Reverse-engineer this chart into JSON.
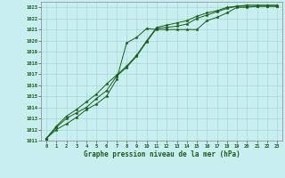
{
  "title": "Graphe pression niveau de la mer (hPa)",
  "bg_color": "#c8eef0",
  "line_color": "#1a5e1a",
  "grid_color": "#a8d8d8",
  "xlim": [
    -0.5,
    23.5
  ],
  "ylim": [
    1011,
    1023.5
  ],
  "xticks": [
    0,
    1,
    2,
    3,
    4,
    5,
    6,
    7,
    8,
    9,
    10,
    11,
    12,
    13,
    14,
    15,
    16,
    17,
    18,
    19,
    20,
    21,
    22,
    23
  ],
  "yticks": [
    1011,
    1012,
    1013,
    1014,
    1015,
    1016,
    1017,
    1018,
    1019,
    1020,
    1021,
    1022,
    1023
  ],
  "series": [
    [
      1011.2,
      1012.0,
      1012.5,
      1013.1,
      1013.8,
      1014.3,
      1015.0,
      1016.5,
      1019.8,
      1020.3,
      1021.1,
      1021.0,
      1021.0,
      1021.0,
      1021.0,
      1021.0,
      1021.8,
      1022.1,
      1022.5,
      1023.0,
      1023.0,
      1023.1,
      1023.1,
      1023.1
    ],
    [
      1011.2,
      1012.2,
      1013.0,
      1013.5,
      1014.0,
      1014.8,
      1015.5,
      1016.8,
      1017.6,
      1018.6,
      1019.9,
      1021.1,
      1021.2,
      1021.3,
      1021.5,
      1022.0,
      1022.3,
      1022.6,
      1022.9,
      1023.1,
      1023.1,
      1023.1,
      1023.1,
      1023.1
    ],
    [
      1011.2,
      1012.3,
      1013.2,
      1013.8,
      1014.5,
      1015.2,
      1016.1,
      1016.9,
      1017.7,
      1018.7,
      1020.0,
      1021.2,
      1021.4,
      1021.6,
      1021.8,
      1022.2,
      1022.5,
      1022.7,
      1023.0,
      1023.1,
      1023.2,
      1023.2,
      1023.2,
      1023.2
    ]
  ]
}
